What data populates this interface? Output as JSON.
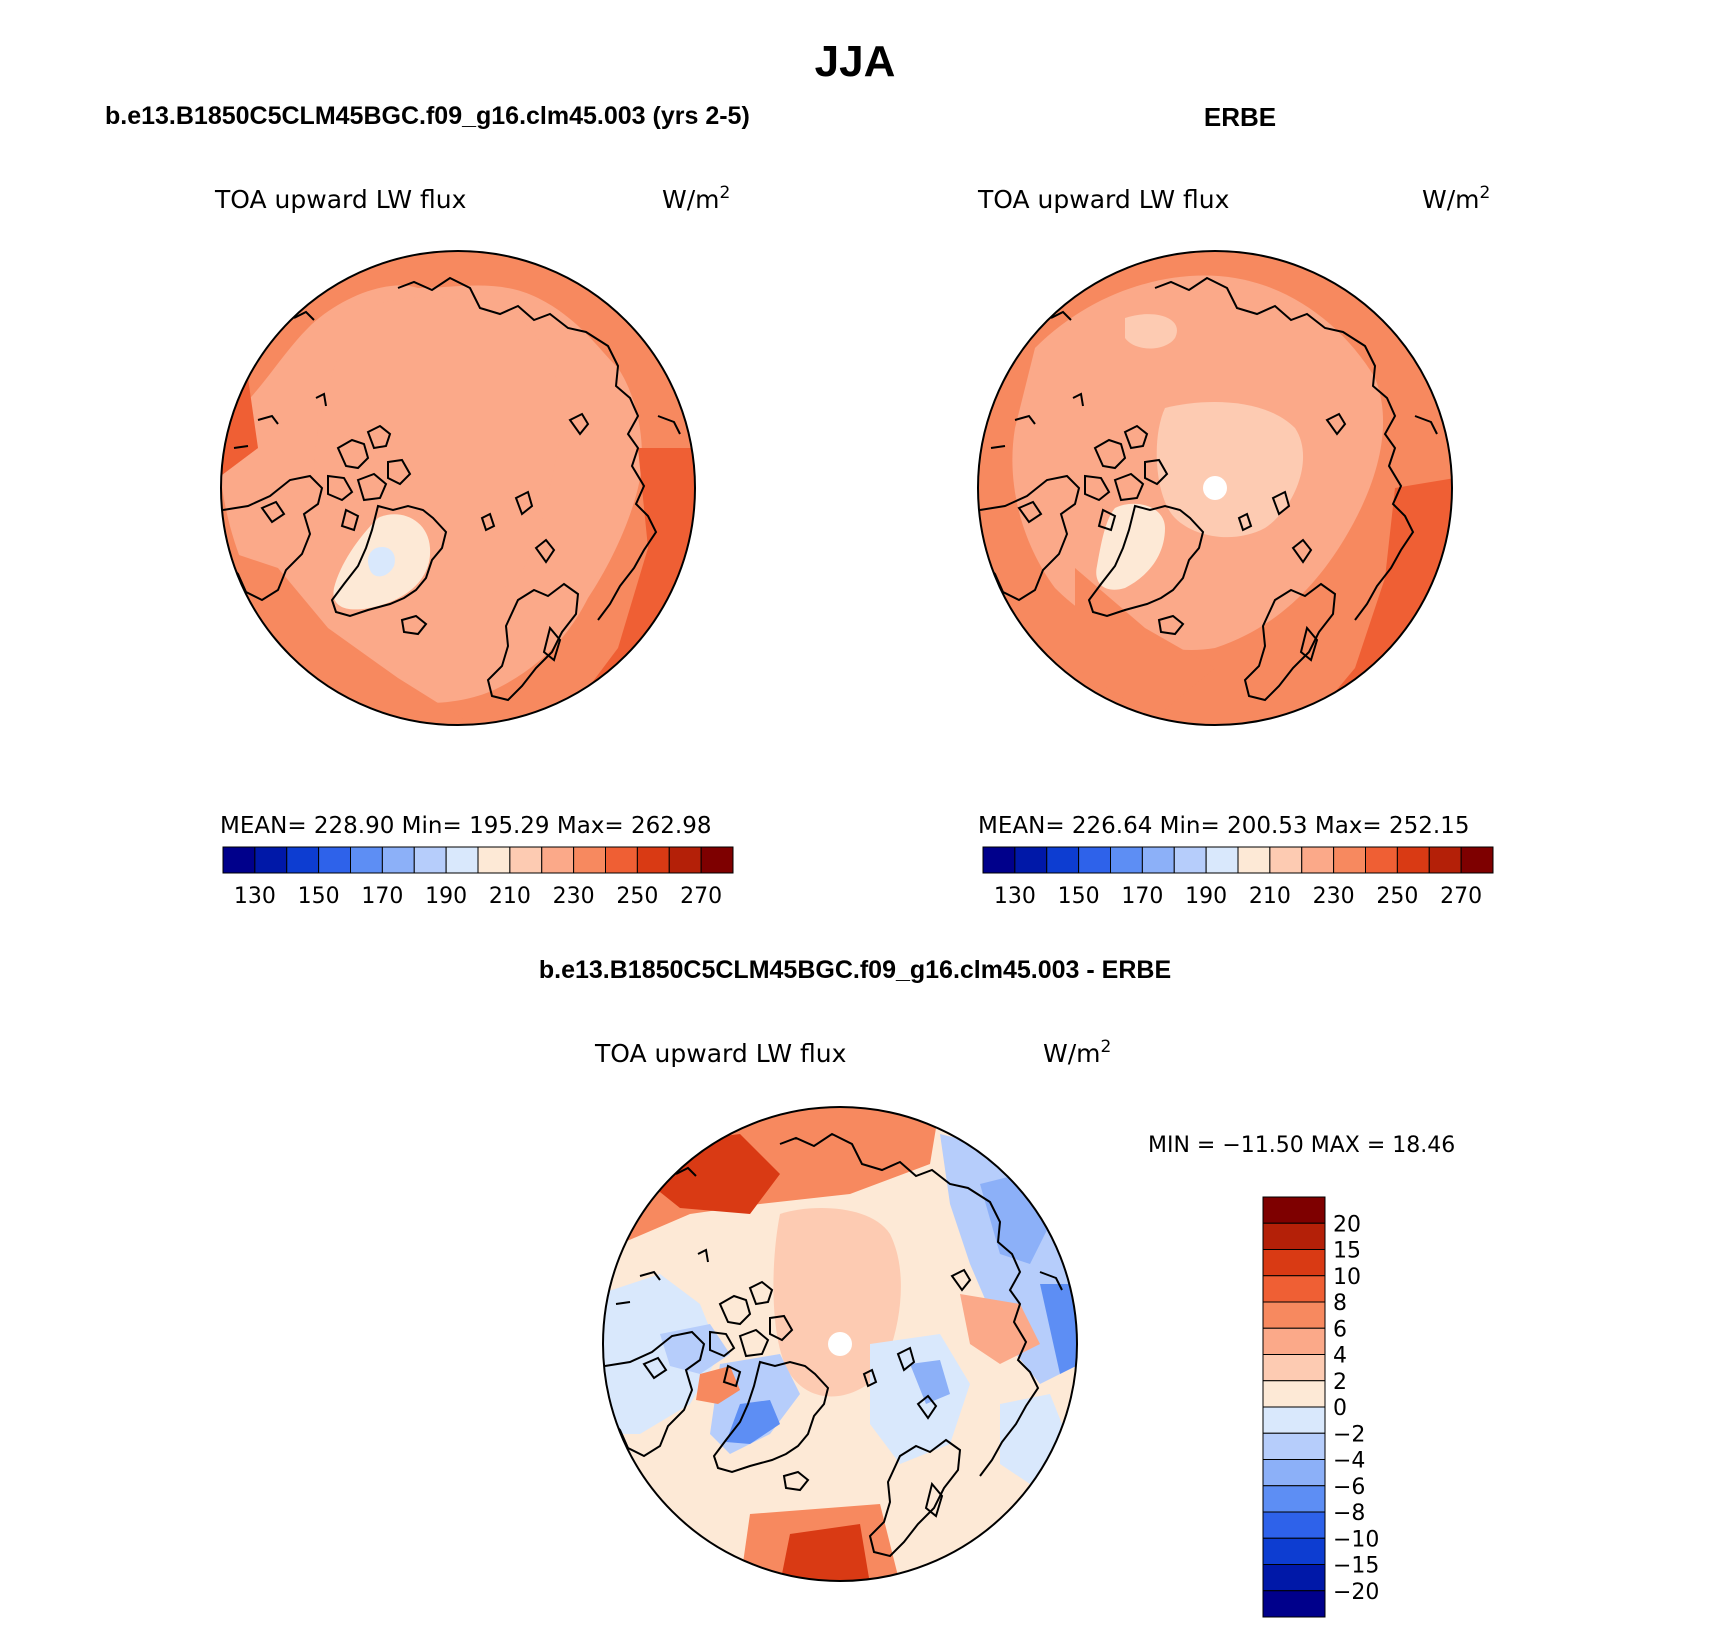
{
  "page": {
    "title": "JJA"
  },
  "panels": [
    {
      "id": "model",
      "header": "b.e13.B1850C5CLM45BGC.f09_g16.clm45.003 (yrs 2-5)",
      "variable": "TOA upward LW flux",
      "units_base": "W/m",
      "units_sup": "2",
      "stats_text": "MEAN= 228.90   Min= 195.29   Max= 262.98"
    },
    {
      "id": "obs",
      "header": "ERBE",
      "variable": "TOA upward LW flux",
      "units_base": "W/m",
      "units_sup": "2",
      "stats_text": "MEAN= 226.64   Min= 200.53   Max= 252.15"
    },
    {
      "id": "diff",
      "header": "b.e13.B1850C5CLM45BGC.f09_g16.clm45.003 - ERBE",
      "variable": "TOA upward LW flux",
      "units_base": "W/m",
      "units_sup": "2",
      "stats_text": "MIN = −11.50  MAX =   18.46"
    }
  ],
  "colorbar_abs": {
    "colors": [
      "#00008b",
      "#0018a8",
      "#0d3dd1",
      "#2e62ea",
      "#5d8ef4",
      "#8cb0f8",
      "#b6cdfb",
      "#d9e8fc",
      "#fde9d6",
      "#fdcbb2",
      "#fba989",
      "#f7895f",
      "#ef5f34",
      "#d93a14",
      "#b42008",
      "#7e0000"
    ],
    "labels": [
      "130",
      "150",
      "170",
      "190",
      "210",
      "230",
      "250",
      "270"
    ]
  },
  "colorbar_diff": {
    "colors": [
      "#7e0000",
      "#b42008",
      "#d93a14",
      "#ef5f34",
      "#f7895f",
      "#fba989",
      "#fdcbb2",
      "#fde9d6",
      "#d9e8fc",
      "#b6cdfb",
      "#8cb0f8",
      "#5d8ef4",
      "#2e62ea",
      "#0d3dd1",
      "#0018a8",
      "#00008b"
    ],
    "labels": [
      "20",
      "15",
      "10",
      "8",
      "6",
      "4",
      "2",
      "0",
      "−2",
      "−4",
      "−6",
      "−8",
      "−10",
      "−15",
      "−20"
    ]
  }
}
